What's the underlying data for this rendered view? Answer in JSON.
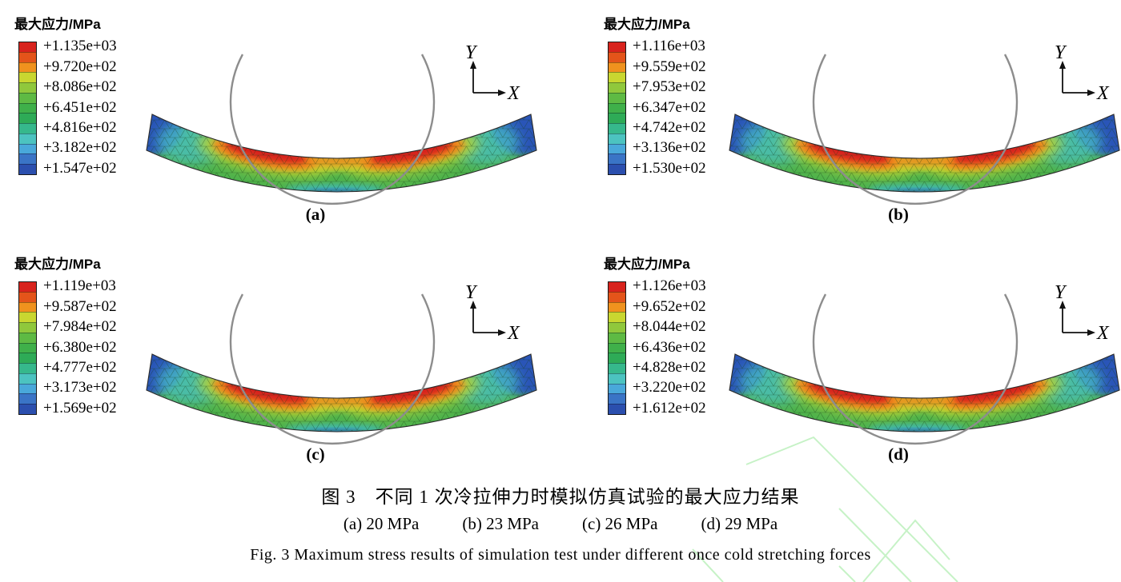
{
  "figure": {
    "caption_zh": "图 3　不同 1 次冷拉伸力时模拟仿真试验的最大应力结果",
    "subcaptions": [
      "(a) 20 MPa",
      "(b) 23 MPa",
      "(c) 26 MPa",
      "(d) 29 MPa"
    ],
    "caption_en": "Fig. 3  Maximum stress results of simulation test under different once cold stretching forces"
  },
  "legend_title": "最大应力/MPa",
  "axes_indicator": {
    "x": "X",
    "y": "Y"
  },
  "colorbar_colors": [
    "#d8231d",
    "#e4541a",
    "#f0921e",
    "#c9d730",
    "#90c83c",
    "#5eba44",
    "#3fb04a",
    "#2eab57",
    "#36b88c",
    "#4cc3c0",
    "#49a8da",
    "#3a74c6",
    "#2b4fae"
  ],
  "watermark_color": "#c6f2c6",
  "panels": [
    {
      "id": "a",
      "label": "(a)",
      "cold_stretching_force": "20 MPa",
      "legend_values": [
        "+1.135e+03",
        "+9.720e+02",
        "+8.086e+02",
        "+6.451e+02",
        "+4.816e+02",
        "+3.182e+02",
        "+1.547e+02"
      ]
    },
    {
      "id": "b",
      "label": "(b)",
      "cold_stretching_force": "23 MPa",
      "legend_values": [
        "+1.116e+03",
        "+9.559e+02",
        "+7.953e+02",
        "+6.347e+02",
        "+4.742e+02",
        "+3.136e+02",
        "+1.530e+02"
      ]
    },
    {
      "id": "c",
      "label": "(c)",
      "cold_stretching_force": "26 MPa",
      "legend_values": [
        "+1.119e+03",
        "+9.587e+02",
        "+7.984e+02",
        "+6.380e+02",
        "+4.777e+02",
        "+3.173e+02",
        "+1.569e+02"
      ]
    },
    {
      "id": "d",
      "label": "(d)",
      "cold_stretching_force": "29 MPa",
      "legend_values": [
        "+1.126e+03",
        "+9.652e+02",
        "+8.044e+02",
        "+6.436e+02",
        "+4.828e+02",
        "+3.220e+02",
        "+1.612e+02"
      ]
    }
  ],
  "chart_data": {
    "type": "heatmap",
    "title": "不同1次冷拉伸力时模拟仿真试验的最大应力结果",
    "colorscale": "rainbow (red = max stress, blue = min stress)",
    "panels": [
      {
        "label": "(a)",
        "cold_stretching_force_MPa": 20,
        "max_stress_MPa": 1135.0,
        "min_stress_MPa": 154.7,
        "legend_ticks_MPa": [
          1135.0,
          972.0,
          808.6,
          645.1,
          481.6,
          318.2,
          154.7
        ]
      },
      {
        "label": "(b)",
        "cold_stretching_force_MPa": 23,
        "max_stress_MPa": 1116.0,
        "min_stress_MPa": 153.0,
        "legend_ticks_MPa": [
          1116.0,
          955.9,
          795.3,
          634.7,
          474.2,
          313.6,
          153.0
        ]
      },
      {
        "label": "(c)",
        "cold_stretching_force_MPa": 26,
        "max_stress_MPa": 1119.0,
        "min_stress_MPa": 156.9,
        "legend_ticks_MPa": [
          1119.0,
          958.7,
          798.4,
          638.0,
          477.7,
          317.3,
          156.9
        ]
      },
      {
        "label": "(d)",
        "cold_stretching_force_MPa": 29,
        "max_stress_MPa": 1126.0,
        "min_stress_MPa": 161.2,
        "legend_ticks_MPa": [
          1126.0,
          965.2,
          804.4,
          643.6,
          482.8,
          322.0,
          161.2
        ]
      }
    ]
  }
}
